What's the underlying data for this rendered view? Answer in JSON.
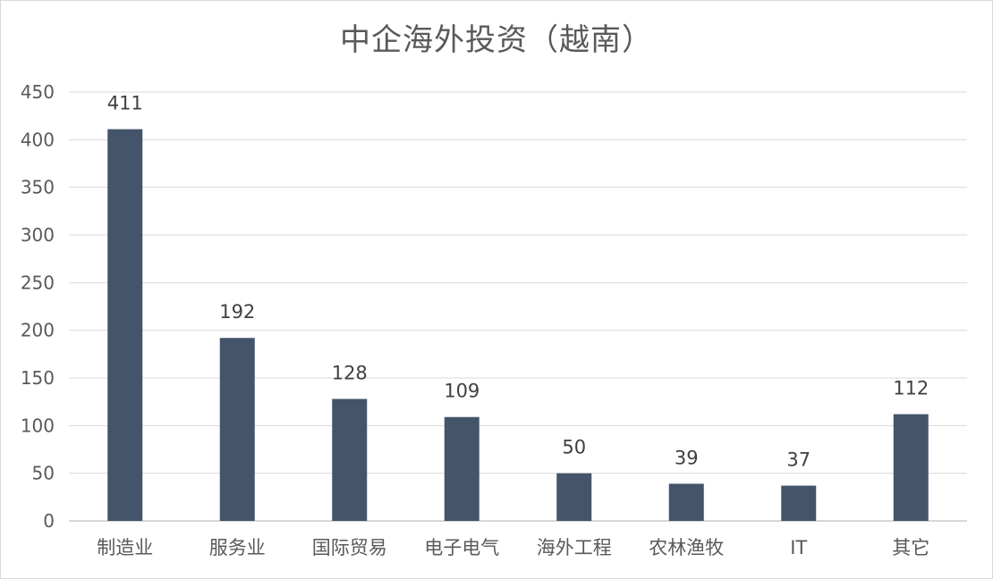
{
  "chart_data": {
    "type": "bar",
    "title": "中企海外投资（越南）",
    "xlabel": "",
    "ylabel": "",
    "categories": [
      "制造业",
      "服务业",
      "国际贸易",
      "电子电气",
      "海外工程",
      "农林渔牧",
      "IT",
      "其它"
    ],
    "values": [
      411,
      192,
      128,
      109,
      50,
      39,
      37,
      112
    ],
    "ylim": [
      0,
      450
    ],
    "yticks": [
      0,
      50,
      100,
      150,
      200,
      250,
      300,
      350,
      400,
      450
    ],
    "grid": true,
    "legend": "none",
    "bar_color": "#44546a",
    "data_labels": true
  }
}
